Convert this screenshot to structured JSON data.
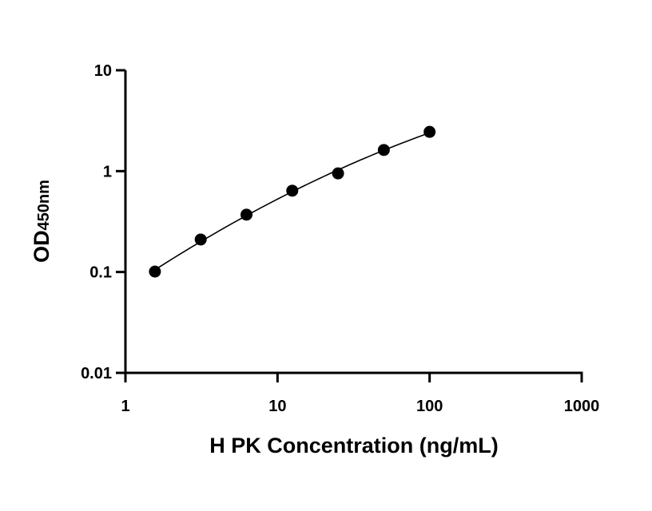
{
  "chart_data": {
    "type": "scatter",
    "title": "",
    "xlabel": "H PK Concentration (ng/mL)",
    "ylabel": {
      "main": "OD",
      "subscript": "450nm"
    },
    "x_scale": "log",
    "y_scale": "log",
    "xlim": [
      1,
      1000
    ],
    "ylim": [
      0.01,
      10
    ],
    "x_ticks": [
      "1",
      "10",
      "100",
      "1000"
    ],
    "y_ticks": [
      "0.01",
      "0.1",
      "1",
      "10"
    ],
    "grid": false,
    "legend": "none",
    "series": [
      {
        "x": [
          1.5625,
          3.125,
          6.25,
          12.5,
          25,
          50,
          100
        ],
        "y": [
          0.101,
          0.21,
          0.37,
          0.64,
          0.95,
          1.62,
          2.45
        ],
        "marker": "circle",
        "color": "#000000",
        "fit_curve": true
      }
    ]
  }
}
